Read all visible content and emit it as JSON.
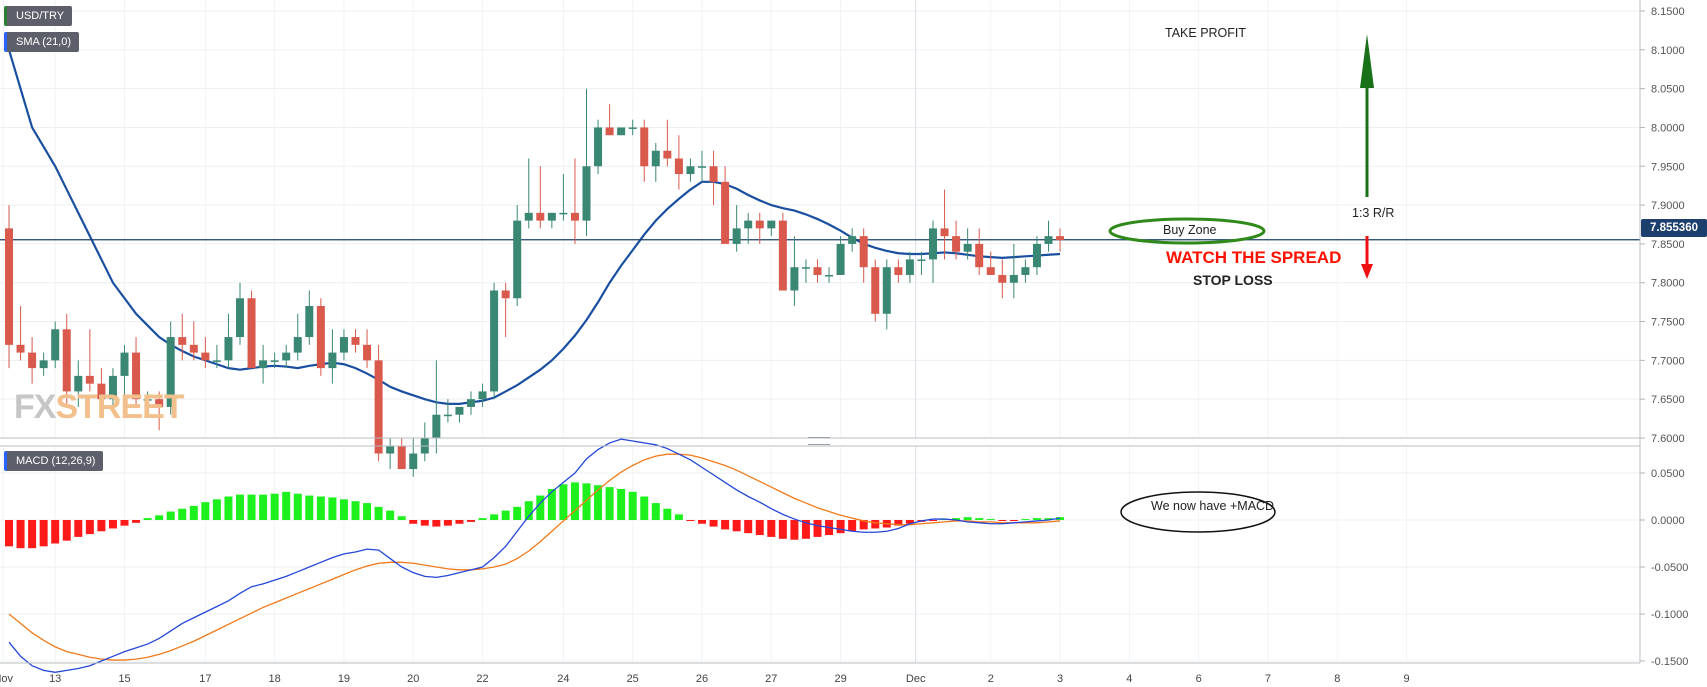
{
  "chart_data": [
    {
      "type": "candlestick",
      "symbol": "USD/TRY",
      "indicator_label": "SMA (21,0)",
      "current_price_label": "7.855360",
      "current_price": 7.85536,
      "ylim": [
        7.57,
        8.155
      ],
      "y_ticks": [
        "8.1500",
        "8.1000",
        "8.0500",
        "8.0000",
        "7.9500",
        "7.9000",
        "7.8500",
        "7.8000",
        "7.7500",
        "7.7000",
        "7.6500",
        "7.6000"
      ],
      "x_labels": [
        {
          "label": "Nov",
          "i": -0.5
        },
        {
          "label": "13",
          "i": 4
        },
        {
          "label": "15",
          "i": 10
        },
        {
          "label": "17",
          "i": 17
        },
        {
          "label": "18",
          "i": 23
        },
        {
          "label": "19",
          "i": 29
        },
        {
          "label": "20",
          "i": 35
        },
        {
          "label": "22",
          "i": 41
        },
        {
          "label": "24",
          "i": 48
        },
        {
          "label": "25",
          "i": 54
        },
        {
          "label": "26",
          "i": 60
        },
        {
          "label": "27",
          "i": 66
        },
        {
          "label": "29",
          "i": 72
        },
        {
          "label": "Dec",
          "i": 78.5
        },
        {
          "label": "2",
          "i": 85
        },
        {
          "label": "3",
          "i": 91
        },
        {
          "label": "4",
          "i": 97
        },
        {
          "label": "6",
          "i": 103
        },
        {
          "label": "7",
          "i": 109
        },
        {
          "label": "8",
          "i": 115
        },
        {
          "label": "9",
          "i": 121
        }
      ],
      "vertical_marker_i": 78.5,
      "candles": [
        [
          7.87,
          7.9,
          7.69,
          7.72
        ],
        [
          7.72,
          7.77,
          7.7,
          7.71
        ],
        [
          7.71,
          7.73,
          7.67,
          7.69
        ],
        [
          7.69,
          7.71,
          7.68,
          7.7
        ],
        [
          7.7,
          7.75,
          7.69,
          7.74
        ],
        [
          7.74,
          7.76,
          7.64,
          7.66
        ],
        [
          7.66,
          7.7,
          7.64,
          7.68
        ],
        [
          7.68,
          7.74,
          7.66,
          7.67
        ],
        [
          7.67,
          7.69,
          7.63,
          7.65
        ],
        [
          7.65,
          7.69,
          7.64,
          7.68
        ],
        [
          7.68,
          7.72,
          7.65,
          7.71
        ],
        [
          7.71,
          7.73,
          7.64,
          7.65
        ],
        [
          7.65,
          7.66,
          7.63,
          7.65
        ],
        [
          7.65,
          7.66,
          7.61,
          7.64
        ],
        [
          7.64,
          7.75,
          7.63,
          7.73
        ],
        [
          7.73,
          7.76,
          7.7,
          7.72
        ],
        [
          7.72,
          7.75,
          7.7,
          7.71
        ],
        [
          7.71,
          7.73,
          7.69,
          7.7
        ],
        [
          7.7,
          7.72,
          7.69,
          7.7
        ],
        [
          7.7,
          7.76,
          7.69,
          7.73
        ],
        [
          7.73,
          7.8,
          7.72,
          7.78
        ],
        [
          7.78,
          7.79,
          7.69,
          7.69
        ],
        [
          7.69,
          7.72,
          7.67,
          7.7
        ],
        [
          7.7,
          7.71,
          7.69,
          7.7
        ],
        [
          7.7,
          7.72,
          7.69,
          7.71
        ],
        [
          7.71,
          7.76,
          7.7,
          7.73
        ],
        [
          7.73,
          7.79,
          7.72,
          7.77
        ],
        [
          7.77,
          7.78,
          7.68,
          7.69
        ],
        [
          7.69,
          7.74,
          7.67,
          7.71
        ],
        [
          7.71,
          7.74,
          7.7,
          7.73
        ],
        [
          7.73,
          7.74,
          7.71,
          7.72
        ],
        [
          7.72,
          7.74,
          7.69,
          7.7
        ],
        [
          7.7,
          7.72,
          7.57,
          7.58
        ],
        [
          7.58,
          7.6,
          7.56,
          7.59
        ],
        [
          7.59,
          7.6,
          7.56,
          7.56
        ],
        [
          7.56,
          7.6,
          7.55,
          7.58
        ],
        [
          7.58,
          7.62,
          7.57,
          7.6
        ],
        [
          7.6,
          7.7,
          7.58,
          7.63
        ],
        [
          7.63,
          7.65,
          7.62,
          7.63
        ],
        [
          7.63,
          7.64,
          7.62,
          7.64
        ],
        [
          7.64,
          7.66,
          7.63,
          7.65
        ],
        [
          7.65,
          7.67,
          7.64,
          7.66
        ],
        [
          7.66,
          7.8,
          7.65,
          7.79
        ],
        [
          7.79,
          7.8,
          7.73,
          7.78
        ],
        [
          7.78,
          7.9,
          7.77,
          7.88
        ],
        [
          7.88,
          7.96,
          7.87,
          7.89
        ],
        [
          7.89,
          7.95,
          7.87,
          7.88
        ],
        [
          7.88,
          7.89,
          7.87,
          7.89
        ],
        [
          7.89,
          7.94,
          7.88,
          7.89
        ],
        [
          7.89,
          7.96,
          7.85,
          7.88
        ],
        [
          7.88,
          8.05,
          7.86,
          7.95
        ],
        [
          7.95,
          8.01,
          7.94,
          8.0
        ],
        [
          8.0,
          8.03,
          7.99,
          7.99
        ],
        [
          7.99,
          8.0,
          7.99,
          8.0
        ],
        [
          8.0,
          8.01,
          7.99,
          8.0
        ],
        [
          8.0,
          8.01,
          7.93,
          7.95
        ],
        [
          7.95,
          7.98,
          7.93,
          7.97
        ],
        [
          7.97,
          8.01,
          7.95,
          7.96
        ],
        [
          7.96,
          7.99,
          7.92,
          7.94
        ],
        [
          7.94,
          7.96,
          7.93,
          7.95
        ],
        [
          7.95,
          7.97,
          7.93,
          7.95
        ],
        [
          7.95,
          7.97,
          7.9,
          7.93
        ],
        [
          7.93,
          7.95,
          7.85,
          7.85
        ],
        [
          7.85,
          7.9,
          7.84,
          7.87
        ],
        [
          7.87,
          7.89,
          7.85,
          7.88
        ],
        [
          7.88,
          7.89,
          7.85,
          7.87
        ],
        [
          7.87,
          7.88,
          7.86,
          7.88
        ],
        [
          7.88,
          7.89,
          7.79,
          7.79
        ],
        [
          7.79,
          7.86,
          7.77,
          7.82
        ],
        [
          7.82,
          7.83,
          7.8,
          7.82
        ],
        [
          7.82,
          7.83,
          7.8,
          7.81
        ],
        [
          7.81,
          7.82,
          7.8,
          7.81
        ],
        [
          7.81,
          7.86,
          7.81,
          7.85
        ],
        [
          7.85,
          7.87,
          7.84,
          7.86
        ],
        [
          7.86,
          7.87,
          7.8,
          7.82
        ],
        [
          7.82,
          7.83,
          7.75,
          7.76
        ],
        [
          7.76,
          7.83,
          7.74,
          7.82
        ],
        [
          7.82,
          7.83,
          7.8,
          7.81
        ],
        [
          7.81,
          7.84,
          7.8,
          7.83
        ],
        [
          7.83,
          7.84,
          7.81,
          7.83
        ],
        [
          7.83,
          7.88,
          7.8,
          7.87
        ],
        [
          7.87,
          7.92,
          7.83,
          7.86
        ],
        [
          7.86,
          7.88,
          7.83,
          7.84
        ],
        [
          7.84,
          7.87,
          7.83,
          7.85
        ],
        [
          7.85,
          7.87,
          7.81,
          7.82
        ],
        [
          7.82,
          7.84,
          7.81,
          7.81
        ],
        [
          7.81,
          7.83,
          7.78,
          7.8
        ],
        [
          7.8,
          7.85,
          7.78,
          7.81
        ],
        [
          7.81,
          7.83,
          7.8,
          7.82
        ],
        [
          7.82,
          7.86,
          7.81,
          7.85
        ],
        [
          7.85,
          7.88,
          7.84,
          7.86
        ],
        [
          7.86,
          7.87,
          7.84,
          7.855
        ]
      ],
      "sma": [
        8.1,
        8.05,
        8.0,
        7.975,
        7.95,
        7.92,
        7.89,
        7.86,
        7.83,
        7.8,
        7.78,
        7.76,
        7.745,
        7.73,
        7.72,
        7.712,
        7.705,
        7.7,
        7.695,
        7.69,
        7.688,
        7.69,
        7.692,
        7.693,
        7.692,
        7.69,
        7.693,
        7.695,
        7.697,
        7.695,
        7.69,
        7.683,
        7.675,
        7.666,
        7.66,
        7.655,
        7.65,
        7.646,
        7.644,
        7.644,
        7.646,
        7.648,
        7.652,
        7.66,
        7.668,
        7.678,
        7.688,
        7.7,
        7.715,
        7.732,
        7.752,
        7.775,
        7.8,
        7.822,
        7.842,
        7.862,
        7.88,
        7.895,
        7.908,
        7.92,
        7.93,
        7.93,
        7.927,
        7.921,
        7.913,
        7.906,
        7.9,
        7.896,
        7.893,
        7.888,
        7.882,
        7.875,
        7.867,
        7.858,
        7.85,
        7.845,
        7.841,
        7.838,
        7.837,
        7.837,
        7.838,
        7.839,
        7.838,
        7.836,
        7.834,
        7.833,
        7.832,
        7.833,
        7.834,
        7.835,
        7.836,
        7.837
      ],
      "annotations": {
        "take_profit": "TAKE PROFIT",
        "buy_zone": "Buy Zone",
        "watch_spread": "WATCH THE SPREAD",
        "stop_loss": "STOP LOSS",
        "rr": "1:3 R/R"
      },
      "watermark": {
        "part1": "FX",
        "part2": "STREET"
      },
      "colors": {
        "bull": "#3a8774",
        "bear": "#d9594c",
        "sma": "#1a4fa0",
        "price_line": "#1c3f6e",
        "arrow_up": "#187018",
        "arrow_down": "#ee1111",
        "ellipse": "#2f8a1a"
      }
    },
    {
      "type": "macd",
      "indicator_label": "MACD (12,26,9)",
      "ylim": [
        -0.162,
        0.09
      ],
      "y_ticks": [
        "0.0500",
        "0.0000",
        "-0.0500",
        "-0.1000",
        "-0.1500"
      ],
      "macd": [
        -0.13,
        -0.145,
        -0.155,
        -0.16,
        -0.162,
        -0.16,
        -0.158,
        -0.155,
        -0.15,
        -0.145,
        -0.14,
        -0.136,
        -0.132,
        -0.126,
        -0.118,
        -0.11,
        -0.104,
        -0.098,
        -0.092,
        -0.086,
        -0.078,
        -0.071,
        -0.068,
        -0.064,
        -0.06,
        -0.055,
        -0.05,
        -0.045,
        -0.04,
        -0.036,
        -0.034,
        -0.031,
        -0.032,
        -0.041,
        -0.05,
        -0.056,
        -0.06,
        -0.061,
        -0.059,
        -0.056,
        -0.053,
        -0.05,
        -0.04,
        -0.028,
        -0.012,
        0.004,
        0.018,
        0.03,
        0.04,
        0.05,
        0.065,
        0.075,
        0.082,
        0.086,
        0.084,
        0.082,
        0.08,
        0.076,
        0.07,
        0.064,
        0.056,
        0.048,
        0.04,
        0.032,
        0.025,
        0.019,
        0.012,
        0.006,
        0.001,
        -0.003,
        -0.006,
        -0.008,
        -0.01,
        -0.012,
        -0.013,
        -0.013,
        -0.012,
        -0.009,
        -0.004,
        -0.001,
        0.001,
        0.001,
        0.0,
        -0.002,
        -0.003,
        -0.004,
        -0.004,
        -0.003,
        -0.002,
        -0.001,
        0.0,
        0.002
      ],
      "signal": [
        -0.1,
        -0.11,
        -0.12,
        -0.128,
        -0.135,
        -0.14,
        -0.143,
        -0.146,
        -0.148,
        -0.149,
        -0.149,
        -0.148,
        -0.146,
        -0.143,
        -0.139,
        -0.134,
        -0.129,
        -0.123,
        -0.117,
        -0.111,
        -0.105,
        -0.099,
        -0.093,
        -0.088,
        -0.083,
        -0.078,
        -0.073,
        -0.068,
        -0.063,
        -0.058,
        -0.053,
        -0.049,
        -0.046,
        -0.045,
        -0.045,
        -0.046,
        -0.048,
        -0.05,
        -0.052,
        -0.053,
        -0.053,
        -0.052,
        -0.05,
        -0.047,
        -0.041,
        -0.033,
        -0.023,
        -0.012,
        -0.001,
        0.01,
        0.021,
        0.032,
        0.042,
        0.051,
        0.058,
        0.064,
        0.068,
        0.07,
        0.07,
        0.069,
        0.066,
        0.062,
        0.058,
        0.053,
        0.047,
        0.041,
        0.035,
        0.029,
        0.023,
        0.018,
        0.013,
        0.009,
        0.005,
        0.002,
        -0.001,
        -0.003,
        -0.004,
        -0.005,
        -0.005,
        -0.004,
        -0.003,
        -0.002,
        -0.001,
        -0.001,
        -0.002,
        -0.002,
        -0.003,
        -0.003,
        -0.003,
        -0.003,
        -0.002,
        -0.001
      ],
      "histogram": [
        -0.028,
        -0.03,
        -0.03,
        -0.028,
        -0.025,
        -0.022,
        -0.018,
        -0.015,
        -0.012,
        -0.009,
        -0.006,
        -0.003,
        0.002,
        0.005,
        0.009,
        0.012,
        0.015,
        0.019,
        0.022,
        0.025,
        0.027,
        0.027,
        0.027,
        0.028,
        0.03,
        0.028,
        0.026,
        0.025,
        0.024,
        0.022,
        0.02,
        0.018,
        0.014,
        0.01,
        0.004,
        -0.004,
        -0.006,
        -0.007,
        -0.006,
        -0.004,
        -0.002,
        0.002,
        0.006,
        0.01,
        0.014,
        0.02,
        0.026,
        0.033,
        0.038,
        0.04,
        0.039,
        0.037,
        0.035,
        0.033,
        0.03,
        0.025,
        0.018,
        0.012,
        0.006,
        -0.001,
        -0.004,
        -0.007,
        -0.01,
        -0.012,
        -0.014,
        -0.016,
        -0.018,
        -0.02,
        -0.021,
        -0.02,
        -0.018,
        -0.016,
        -0.014,
        -0.012,
        -0.01,
        -0.009,
        -0.008,
        -0.006,
        -0.004,
        -0.002,
        -0.001,
        0.001,
        0.002,
        0.003,
        0.002,
        0.001,
        -0.001,
        -0.001,
        0.001,
        0.002,
        0.002,
        0.003
      ],
      "annotation": "We now have +MACD",
      "colors": {
        "macd": "#2447d8",
        "signal": "#f07a1a",
        "hist_pos": "#1ef01e",
        "hist_neg": "#ff1a1a"
      }
    }
  ]
}
